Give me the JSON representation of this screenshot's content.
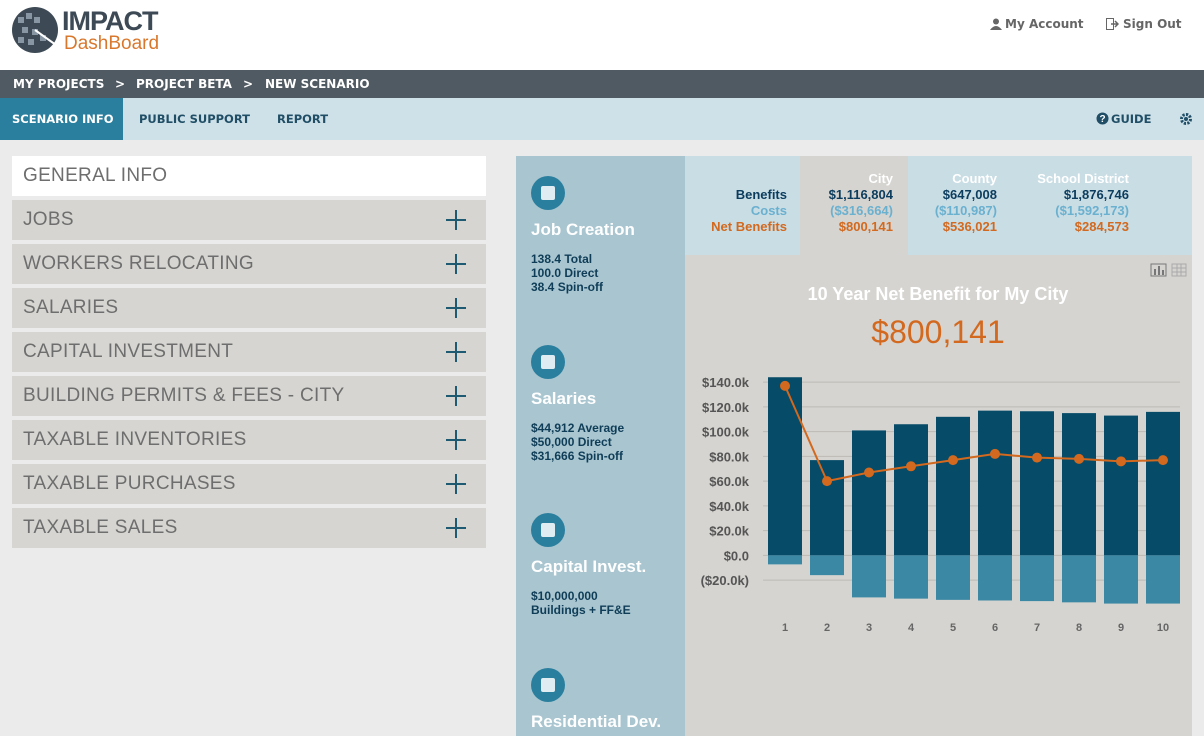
{
  "header": {
    "logo": {
      "line1": "IMPACT",
      "line2": "DashBoard"
    },
    "links": [
      "My Account",
      "Sign Out"
    ]
  },
  "breadcrumb": {
    "items": [
      "MY PROJECTS",
      "PROJECT BETA",
      "NEW SCENARIO"
    ],
    "separator": ">"
  },
  "tabs": {
    "items": [
      "SCENARIO INFO",
      "PUBLIC SUPPORT",
      "REPORT"
    ],
    "guide": "GUIDE"
  },
  "accordion": [
    "GENERAL INFO",
    "JOBS",
    "WORKERS RELOCATING",
    "SALARIES",
    "CAPITAL INVESTMENT",
    "BUILDING PERMITS & FEES - CITY",
    "TAXABLE INVENTORIES",
    "TAXABLE PURCHASES",
    "TAXABLE SALES"
  ],
  "cards": [
    {
      "title": "Job Creation",
      "lines": [
        "138.4 Total",
        "100.0 Direct",
        "38.4 Spin-off"
      ]
    },
    {
      "title": "Salaries",
      "lines": [
        "$44,912 Average",
        "$50,000 Direct",
        "$31,666 Spin-off"
      ]
    },
    {
      "title": "Capital Invest.",
      "lines": [
        "$10,000,000",
        "Buildings + FF&E"
      ]
    },
    {
      "title": "Residential Dev.",
      "lines": []
    }
  ],
  "summary": {
    "columns": [
      "City",
      "County",
      "School District"
    ],
    "row_labels": [
      "Benefits",
      "Costs",
      "Net Benefits"
    ],
    "cells": [
      [
        "$1,116,804",
        "$647,008",
        "$1,876,746"
      ],
      [
        "($316,664)",
        "($110,987)",
        "($1,592,173)"
      ],
      [
        "$800,141",
        "$536,021",
        "$284,573"
      ]
    ]
  },
  "chart_data": {
    "type": "bar",
    "title": "10 Year Net Benefit for My City",
    "headline": "$800,141",
    "categories": [
      "1",
      "2",
      "3",
      "4",
      "5",
      "6",
      "7",
      "8",
      "9",
      "10"
    ],
    "series": [
      {
        "color": "#064b68",
        "values": [
          144000,
          77000,
          101000,
          106000,
          112000,
          117000,
          116500,
          115000,
          113000,
          116000
        ]
      },
      {
        "color": "#3b88a4",
        "values": [
          -7300,
          -16000,
          -34000,
          -35000,
          -36000,
          -36500,
          -37000,
          -38000,
          -39000,
          -39000
        ]
      },
      {
        "type": "line",
        "color": "#d2691e",
        "values": [
          137000,
          60000,
          67000,
          72000,
          77000,
          82000,
          79000,
          78000,
          76000,
          77000
        ]
      }
    ],
    "ylim": [
      -45000,
      145000
    ],
    "yticks": [
      {
        "value": -20000,
        "label": "($20.0k)"
      },
      {
        "value": 0,
        "label": "$0.0"
      },
      {
        "value": 20000,
        "label": "$20.0k"
      },
      {
        "value": 40000,
        "label": "$40.0k"
      },
      {
        "value": 60000,
        "label": "$60.0k"
      },
      {
        "value": 80000,
        "label": "$80.0k"
      },
      {
        "value": 100000,
        "label": "$100.0k"
      },
      {
        "value": 120000,
        "label": "$120.0k"
      },
      {
        "value": 140000,
        "label": "$140.0k"
      }
    ],
    "grid": true
  }
}
